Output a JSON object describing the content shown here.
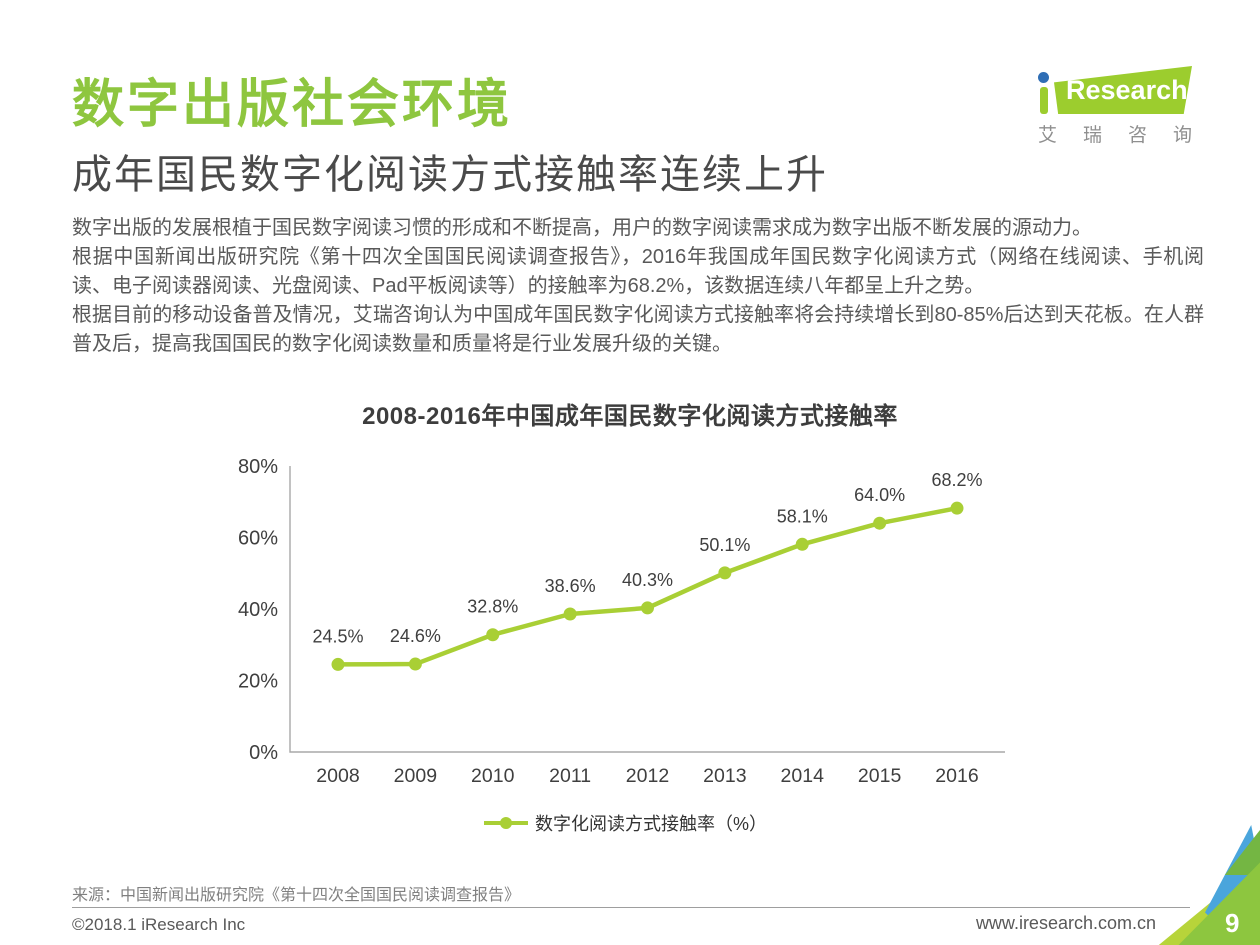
{
  "page": {
    "title": "数字出版社会环境",
    "subtitle": "成年国民数字化阅读方式接触率连续上升",
    "paragraphs": [
      "数字出版的发展根植于国民数字阅读习惯的形成和不断提高，用户的数字阅读需求成为数字出版不断发展的源动力。",
      "根据中国新闻出版研究院《第十四次全国国民阅读调查报告》，2016年我国成年国民数字化阅读方式（网络在线阅读、手机阅读、电子阅读器阅读、光盘阅读、Pad平板阅读等）的接触率为68.2%，该数据连续八年都呈上升之势。",
      "根据目前的移动设备普及情况，艾瑞咨询认为中国成年国民数字化阅读方式接触率将会持续增长到80-85%后达到天花板。在人群普及后，提高我国国民的数字化阅读数量和质量将是行业发展升级的关键。"
    ],
    "source": "来源：中国新闻出版研究院《第十四次全国国民阅读调查报告》",
    "footer_left": "©2018.1 iResearch Inc",
    "footer_right": "www.iresearch.com.cn",
    "page_number": "9"
  },
  "logo": {
    "brand_i": "i",
    "brand": "Research",
    "caption": "艾瑞咨询",
    "green": "#9ccd2e",
    "blue": "#2f6eb5"
  },
  "chart_data": {
    "type": "line",
    "title": "2008-2016年中国成年国民数字化阅读方式接触率",
    "categories": [
      "2008",
      "2009",
      "2010",
      "2011",
      "2012",
      "2013",
      "2014",
      "2015",
      "2016"
    ],
    "series": [
      {
        "name": "数字化阅读方式接触率（%）",
        "values": [
          24.5,
          24.6,
          32.8,
          38.6,
          40.3,
          50.1,
          58.1,
          64.0,
          68.2
        ]
      }
    ],
    "ylim": [
      0,
      80
    ],
    "ytick_values": [
      0,
      20,
      40,
      60,
      80
    ],
    "ytick_labels": [
      "0%",
      "20%",
      "40%",
      "60%",
      "80%"
    ],
    "data_label_suffix": "%",
    "grid": false,
    "legend_position": "bottom",
    "line_color": "#a9cf35",
    "axis_color": "#a8a8a8",
    "label_color": "#3f3f3f"
  },
  "colors": {
    "title_green": "#8ec63f",
    "corner_blue": "#4aa5dc",
    "corner_green": "#8dc63f"
  }
}
